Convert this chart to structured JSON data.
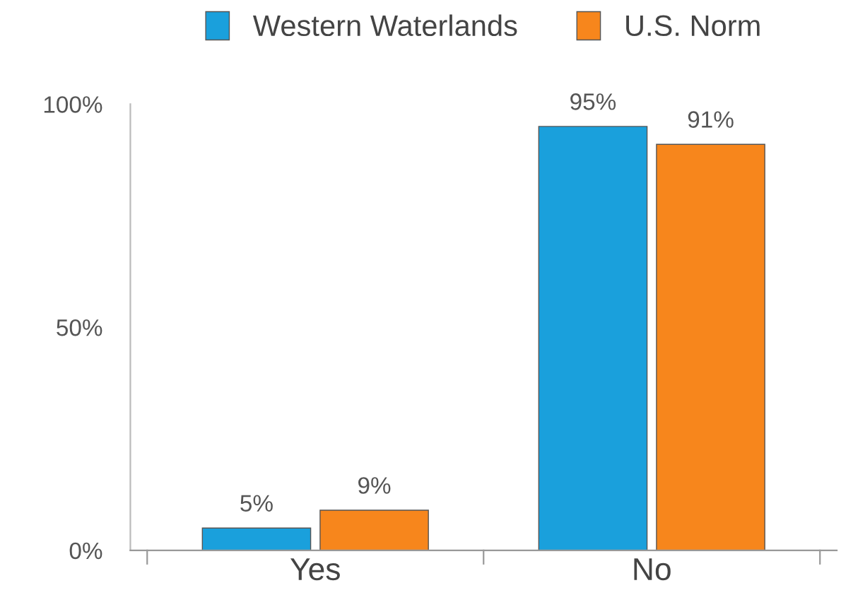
{
  "chart_data": {
    "type": "bar",
    "categories": [
      "Yes",
      "No"
    ],
    "series": [
      {
        "name": "Western Waterlands",
        "color": "#1aa0dc",
        "values": [
          5,
          95
        ]
      },
      {
        "name": "U.S. Norm",
        "color": "#f7861c",
        "values": [
          9,
          91
        ]
      }
    ],
    "ylim": [
      0,
      100
    ],
    "yticks": [
      {
        "value": 0,
        "label": "0%"
      },
      {
        "value": 50,
        "label": "50%"
      },
      {
        "value": 100,
        "label": "100%"
      }
    ],
    "value_labels": [
      [
        "5%",
        "95%"
      ],
      [
        "9%",
        "91%"
      ]
    ],
    "grid": false,
    "legend": "top"
  }
}
